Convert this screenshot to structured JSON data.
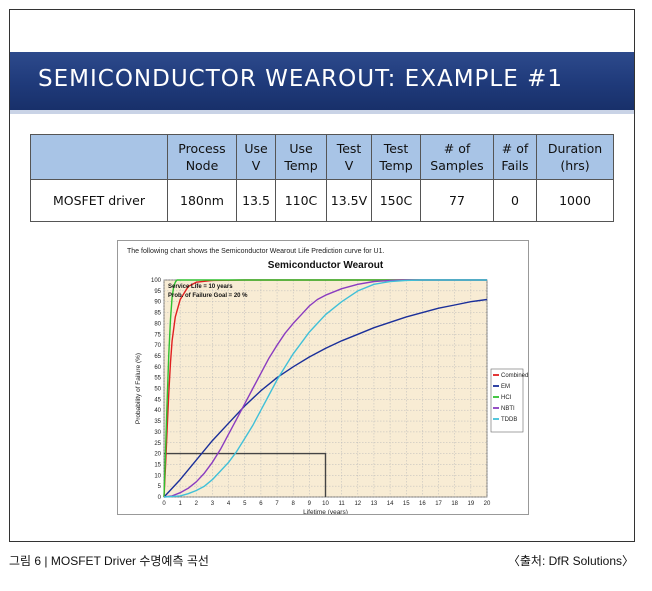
{
  "slide": {
    "title": "SEMICONDUCTOR WEAROUT: EXAMPLE #1"
  },
  "table": {
    "headers": [
      [
        "",
        ""
      ],
      [
        "Process",
        "Node"
      ],
      [
        "Use",
        "V"
      ],
      [
        "Use",
        "Temp"
      ],
      [
        "Test",
        "V"
      ],
      [
        "Test",
        "Temp"
      ],
      [
        "#  of",
        "Samples"
      ],
      [
        "# of",
        "Fails"
      ],
      [
        "Duration",
        "(hrs)"
      ]
    ],
    "row": [
      "MOSFET driver",
      "180nm",
      "13.5",
      "110C",
      "13.5V",
      "150C",
      "77",
      "0",
      "1000"
    ]
  },
  "chart_data": {
    "type": "line",
    "intro": "The following chart shows the Semiconductor Wearout Life Prediction curve for U1.",
    "title": "Semiconductor Wearout",
    "xlabel": "Lifetime (years)",
    "ylabel": "Probability of Failure (%)",
    "xlim": [
      0,
      20
    ],
    "ylim": [
      0,
      100
    ],
    "xticks": [
      0,
      1,
      2,
      3,
      4,
      5,
      6,
      7,
      8,
      9,
      10,
      11,
      12,
      13,
      14,
      15,
      16,
      17,
      18,
      19,
      20
    ],
    "yticks": [
      0,
      5,
      10,
      15,
      20,
      25,
      30,
      35,
      40,
      45,
      50,
      55,
      60,
      65,
      70,
      75,
      80,
      85,
      90,
      95,
      100
    ],
    "annotations": [
      "Service Life = 10 years",
      "Prob. of Failure Goal = 20 %"
    ],
    "reference": {
      "x": 10,
      "y": 20
    },
    "grid": true,
    "legend_position": "right",
    "series": [
      {
        "name": "Combined",
        "color": "#e02020",
        "x": [
          0,
          0.1,
          0.2,
          0.3,
          0.4,
          0.5,
          0.7,
          1.0,
          1.5,
          2,
          3,
          5,
          20
        ],
        "y": [
          0,
          15,
          32,
          48,
          62,
          72,
          83,
          91,
          97,
          99,
          99.8,
          100,
          100
        ]
      },
      {
        "name": "EM",
        "color": "#1a2f9a",
        "x": [
          0,
          1,
          2,
          3,
          4,
          5,
          6,
          7,
          8,
          9,
          10,
          11,
          12,
          13,
          14,
          15,
          16,
          17,
          18,
          19,
          20
        ],
        "y": [
          0,
          8,
          17,
          26,
          34,
          42,
          49,
          55,
          60,
          64.5,
          68.5,
          72,
          75,
          78,
          80.5,
          83,
          85,
          87,
          88.5,
          90,
          91
        ]
      },
      {
        "name": "HCI",
        "color": "#30c030",
        "x": [
          0,
          0.1,
          0.2,
          0.3,
          0.4,
          0.5,
          0.6,
          0.7,
          0.8,
          1,
          20
        ],
        "y": [
          0,
          22,
          45,
          66,
          82,
          92,
          97,
          99,
          100,
          100,
          100
        ]
      },
      {
        "name": "NBTI",
        "color": "#8a3cc0",
        "x": [
          0,
          0.5,
          1,
          1.5,
          2,
          2.5,
          3,
          3.5,
          4,
          4.5,
          5,
          5.5,
          6,
          6.5,
          7,
          7.5,
          8,
          8.5,
          9,
          9.5,
          10,
          11,
          12,
          13,
          14,
          15,
          20
        ],
        "y": [
          0,
          0.5,
          2,
          4,
          7,
          11,
          16,
          22,
          29,
          36,
          43,
          50,
          57,
          64,
          70,
          75.5,
          80,
          84,
          88,
          91,
          93,
          96,
          98,
          99.3,
          99.8,
          100,
          100
        ]
      },
      {
        "name": "TDDB",
        "color": "#40c0d8",
        "x": [
          0,
          1,
          1.5,
          2,
          2.5,
          3,
          3.5,
          4,
          4.5,
          5,
          5.5,
          6,
          6.5,
          7,
          7.5,
          8,
          8.5,
          9,
          9.5,
          10,
          11,
          12,
          13,
          14,
          15,
          16,
          20
        ],
        "y": [
          0,
          0.5,
          1.5,
          3,
          5,
          8,
          12,
          16,
          21,
          27,
          33,
          40,
          47,
          54,
          60,
          66,
          71,
          76,
          80,
          84,
          90,
          95,
          98,
          99.3,
          99.8,
          100,
          100
        ]
      }
    ]
  },
  "caption": {
    "left": "그림 6 | MOSFET Driver 수명예측 곡선",
    "right": "〈출처: DfR Solutions〉"
  }
}
